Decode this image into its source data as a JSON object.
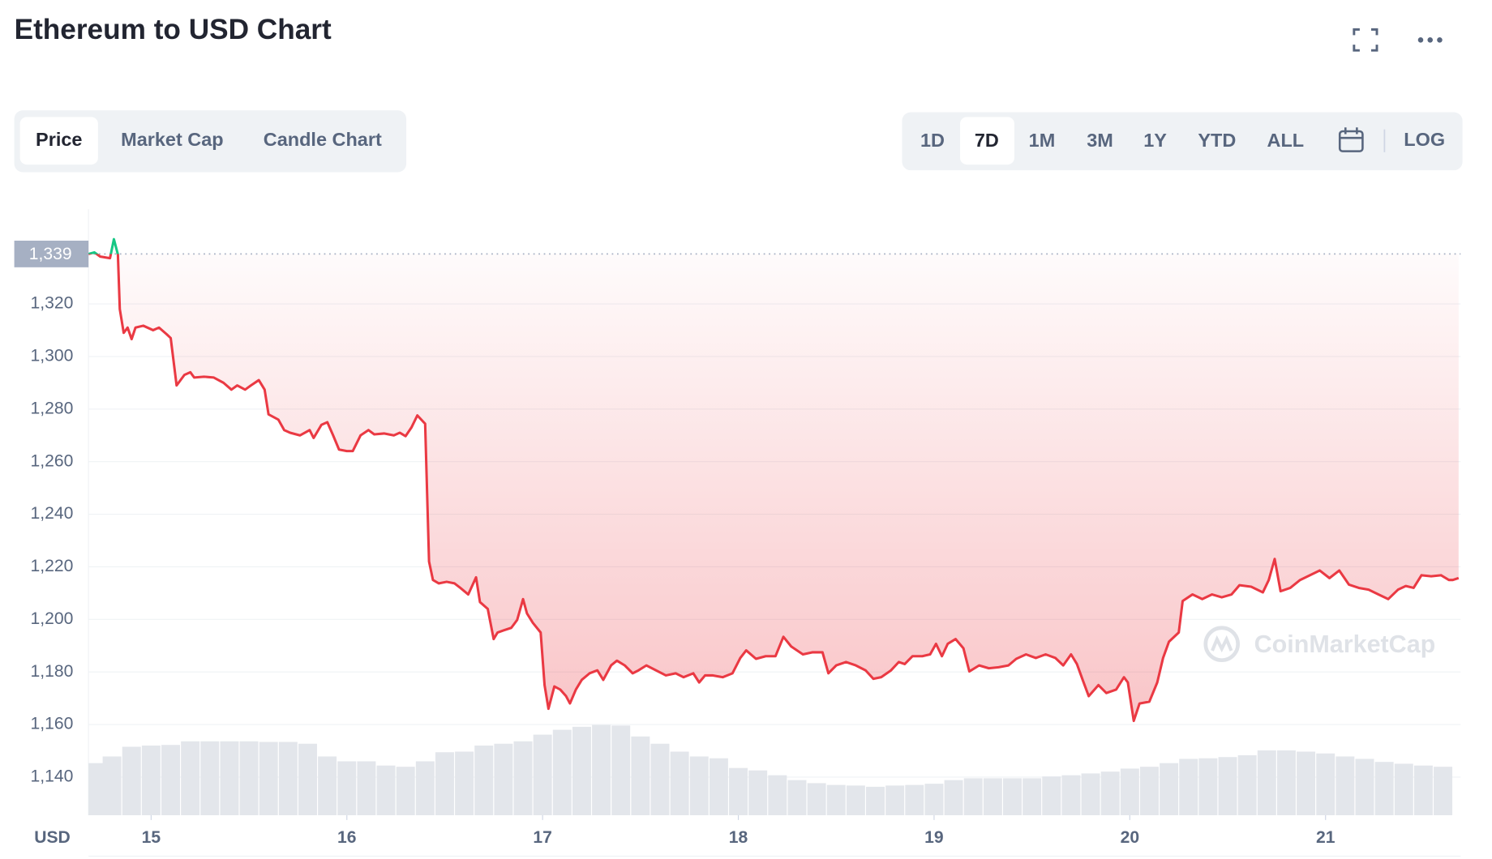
{
  "header": {
    "title": "Ethereum to USD Chart"
  },
  "tabs": [
    "Price",
    "Market Cap",
    "Candle Chart"
  ],
  "active_tab": 0,
  "ranges": [
    "1D",
    "7D",
    "1M",
    "3M",
    "1Y",
    "YTD",
    "ALL"
  ],
  "active_range": 1,
  "scale_button": "LOG",
  "watermark": "CoinMarketCap",
  "chart_data": {
    "type": "line",
    "y_label": "USD",
    "color": "#ea3943",
    "up_color": "#16c784",
    "reference": {
      "value": 1339,
      "label": "1,339"
    },
    "xlim": [
      14.68,
      21.69
    ],
    "xticks": [
      15,
      16,
      17,
      18,
      19,
      20,
      21
    ],
    "ylim": [
      1125.5,
      1356
    ],
    "yticks": [
      {
        "value": 1140,
        "label": "1,140"
      },
      {
        "value": 1160,
        "label": "1,160"
      },
      {
        "value": 1180,
        "label": "1,180"
      },
      {
        "value": 1200,
        "label": "1,200"
      },
      {
        "value": 1220,
        "label": "1,220"
      },
      {
        "value": 1240,
        "label": "1,240"
      },
      {
        "value": 1260,
        "label": "1,260"
      },
      {
        "value": 1280,
        "label": "1,280"
      },
      {
        "value": 1300,
        "label": "1,300"
      },
      {
        "value": 1320,
        "label": "1,320"
      }
    ],
    "grid": true,
    "x": [
      14.68,
      14.71,
      14.74,
      14.79,
      14.81,
      14.83,
      14.84,
      14.86,
      14.88,
      14.9,
      14.92,
      14.96,
      15.01,
      15.04,
      15.08,
      15.1,
      15.13,
      15.17,
      15.2,
      15.22,
      15.27,
      15.32,
      15.37,
      15.41,
      15.44,
      15.48,
      15.51,
      15.55,
      15.58,
      15.6,
      15.65,
      15.68,
      15.71,
      15.76,
      15.81,
      15.83,
      15.87,
      15.9,
      15.93,
      15.96,
      16.0,
      16.03,
      16.07,
      16.11,
      16.14,
      16.19,
      16.24,
      16.27,
      16.3,
      16.33,
      16.36,
      16.4,
      16.42,
      16.44,
      16.47,
      16.51,
      16.55,
      16.58,
      16.62,
      16.66,
      16.68,
      16.72,
      16.75,
      16.77,
      16.8,
      16.84,
      16.87,
      16.9,
      16.92,
      16.95,
      16.99,
      17.01,
      17.03,
      17.06,
      17.09,
      17.12,
      17.14,
      17.17,
      17.2,
      17.24,
      17.28,
      17.31,
      17.35,
      17.38,
      17.42,
      17.46,
      17.49,
      17.53,
      17.58,
      17.63,
      17.68,
      17.72,
      17.77,
      17.8,
      17.83,
      17.87,
      17.92,
      17.97,
      18.01,
      18.04,
      18.09,
      18.14,
      18.19,
      18.23,
      18.27,
      18.33,
      18.38,
      18.43,
      18.46,
      18.5,
      18.55,
      18.6,
      18.65,
      18.69,
      18.73,
      18.78,
      18.82,
      18.85,
      18.89,
      18.94,
      18.98,
      19.01,
      19.04,
      19.07,
      19.11,
      19.15,
      19.18,
      19.23,
      19.28,
      19.33,
      19.38,
      19.42,
      19.47,
      19.52,
      19.57,
      19.62,
      19.66,
      19.7,
      19.73,
      19.76,
      19.79,
      19.84,
      19.88,
      19.93,
      19.97,
      19.99,
      20.02,
      20.05,
      20.1,
      20.14,
      20.17,
      20.2,
      20.25,
      20.27,
      20.32,
      20.37,
      20.42,
      20.47,
      20.52,
      20.56,
      20.62,
      20.68,
      20.71,
      20.74,
      20.77,
      20.82,
      20.87,
      20.92,
      20.97,
      21.02,
      21.07,
      21.12,
      21.17,
      21.22,
      21.27,
      21.32,
      21.37,
      21.41,
      21.45,
      21.49,
      21.54,
      21.59,
      21.63,
      21.65,
      21.68
    ],
    "values": [
      1339,
      1339.6,
      1338,
      1337.4,
      1344.6,
      1338.8,
      1318,
      1309,
      1311,
      1306.6,
      1311,
      1311.7,
      1310,
      1311,
      1308.4,
      1307,
      1289,
      1293,
      1294,
      1292,
      1292.3,
      1292,
      1290,
      1287.4,
      1289,
      1287.4,
      1289,
      1291,
      1287.4,
      1278,
      1276,
      1272,
      1271,
      1270,
      1272,
      1269,
      1274,
      1275,
      1270,
      1264.6,
      1264,
      1264,
      1270,
      1272,
      1270.4,
      1270.7,
      1270,
      1271,
      1269.7,
      1273,
      1277.6,
      1274.4,
      1222,
      1215,
      1213.7,
      1214.3,
      1213.7,
      1212,
      1209.5,
      1216,
      1206.6,
      1204,
      1192.5,
      1195,
      1195.8,
      1196.8,
      1199.8,
      1207.7,
      1202.3,
      1198.7,
      1195,
      1175,
      1166,
      1174.5,
      1173.3,
      1170.8,
      1168,
      1173.3,
      1177,
      1179.5,
      1180.6,
      1177,
      1182.5,
      1184.3,
      1182.5,
      1179.5,
      1180.6,
      1182.5,
      1180.6,
      1178.7,
      1179.5,
      1178,
      1179.5,
      1176,
      1178.7,
      1178.7,
      1178,
      1179.5,
      1185.3,
      1188.2,
      1185,
      1186,
      1186,
      1193.4,
      1189.7,
      1186.7,
      1187.5,
      1187.5,
      1179.5,
      1182.5,
      1183.8,
      1182.5,
      1180.6,
      1177.4,
      1178,
      1180.6,
      1183.8,
      1183,
      1186,
      1186,
      1186.7,
      1190.7,
      1186,
      1190.7,
      1192.5,
      1189,
      1180.2,
      1182.5,
      1181.4,
      1181.8,
      1182.5,
      1185,
      1186.7,
      1185.3,
      1186.7,
      1185.3,
      1182.5,
      1186.7,
      1183,
      1176.8,
      1170.8,
      1175,
      1172,
      1173.3,
      1178,
      1176,
      1161.4,
      1168,
      1168.7,
      1176,
      1185.3,
      1191.5,
      1195,
      1207,
      1209.5,
      1207.7,
      1209.5,
      1208.4,
      1209.5,
      1213,
      1212.4,
      1210.3,
      1215,
      1223,
      1210.7,
      1212,
      1215,
      1216.8,
      1218.6,
      1215.7,
      1218.6,
      1213.2,
      1212,
      1211.3,
      1209.5,
      1207.7,
      1211.3,
      1212.7,
      1212,
      1216.8,
      1216.4,
      1216.8,
      1215,
      1215,
      1215.7
    ],
    "y2lim": [
      0,
      100
    ],
    "volume": {
      "axis": "y2",
      "color": "#e3e6eb",
      "x": [
        14.7,
        14.8,
        14.9,
        15.0,
        15.1,
        15.2,
        15.3,
        15.4,
        15.5,
        15.6,
        15.7,
        15.8,
        15.9,
        16.0,
        16.1,
        16.2,
        16.3,
        16.4,
        16.5,
        16.6,
        16.7,
        16.8,
        16.9,
        17.0,
        17.1,
        17.2,
        17.3,
        17.4,
        17.5,
        17.6,
        17.7,
        17.8,
        17.9,
        18.0,
        18.1,
        18.2,
        18.3,
        18.4,
        18.5,
        18.6,
        18.7,
        18.8,
        18.9,
        19.0,
        19.1,
        19.2,
        19.3,
        19.4,
        19.5,
        19.6,
        19.7,
        19.8,
        19.9,
        20.0,
        20.1,
        20.2,
        20.3,
        20.4,
        20.5,
        20.6,
        20.7,
        20.8,
        20.9,
        21.0,
        21.1,
        21.2,
        21.3,
        21.4,
        21.5,
        21.6
      ],
      "values": [
        8.6,
        9.7,
        11.3,
        11.5,
        11.6,
        12.2,
        12.2,
        12.2,
        12.2,
        12.1,
        12.1,
        11.8,
        9.7,
        8.9,
        8.9,
        8.2,
        8.0,
        8.9,
        10.4,
        10.5,
        11.5,
        11.8,
        12.2,
        13.3,
        14.1,
        14.6,
        14.9,
        14.8,
        13.0,
        11.8,
        10.5,
        9.7,
        9.4,
        7.8,
        7.4,
        6.6,
        5.8,
        5.3,
        5.0,
        4.9,
        4.7,
        4.9,
        5.0,
        5.2,
        5.8,
        6.1,
        6.1,
        6.1,
        6.1,
        6.4,
        6.6,
        6.9,
        7.2,
        7.7,
        8.0,
        8.6,
        9.3,
        9.4,
        9.6,
        9.9,
        10.7,
        10.7,
        10.5,
        10.2,
        9.7,
        9.3,
        8.8,
        8.5,
        8.2,
        8.0
      ]
    }
  }
}
